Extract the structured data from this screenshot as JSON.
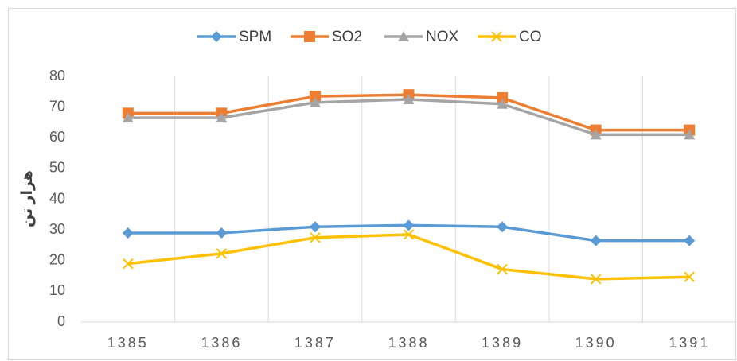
{
  "chart_data": {
    "type": "line",
    "y_label": "هزار تن",
    "categories": [
      "1385",
      "1386",
      "1387",
      "1388",
      "1389",
      "1390",
      "1391"
    ],
    "series": [
      {
        "name": "SPM",
        "color": "#5b9bd5",
        "marker": "diamond",
        "values": [
          29,
          29,
          31,
          31.5,
          31,
          26.5,
          26.5
        ]
      },
      {
        "name": "SO2",
        "color": "#ed7d31",
        "marker": "square",
        "values": [
          68,
          68,
          73.5,
          74,
          73,
          62.5,
          62.5
        ]
      },
      {
        "name": "NOX",
        "color": "#a5a5a5",
        "marker": "triangle",
        "values": [
          66.5,
          66.5,
          71.5,
          72.5,
          71,
          61,
          61
        ]
      },
      {
        "name": "CO",
        "color": "#ffc000",
        "marker": "x",
        "values": [
          19,
          22.3,
          27.5,
          28.5,
          17.2,
          14,
          14.7
        ]
      }
    ],
    "ylim": [
      0,
      80
    ],
    "yticks": [
      0,
      10,
      20,
      30,
      40,
      50,
      60,
      70,
      80
    ],
    "legend": "top"
  }
}
